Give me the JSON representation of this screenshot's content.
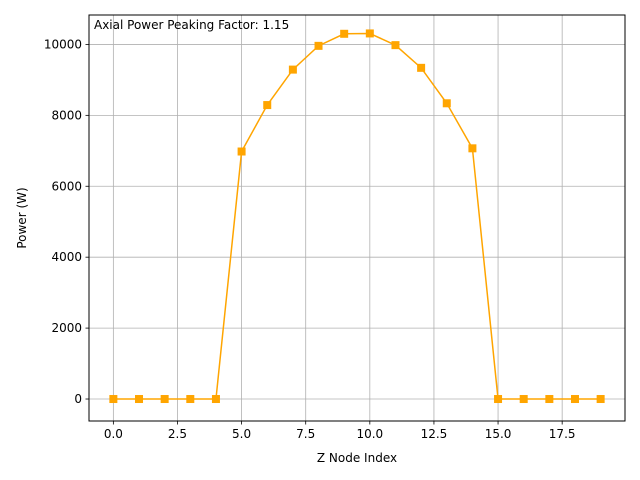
{
  "chart_data": {
    "type": "line",
    "title": "",
    "annotation": "Axial Power Peaking Factor: 1.15",
    "xlabel": "Z Node Index",
    "ylabel": "Power (W)",
    "xlim": [
      -0.95,
      19.95
    ],
    "ylim": [
      -620,
      10830
    ],
    "x_ticks": [
      0,
      2.5,
      5,
      7.5,
      10,
      12.5,
      15,
      17.5
    ],
    "x_tick_labels": [
      "0.0",
      "2.5",
      "5.0",
      "7.5",
      "10.0",
      "12.5",
      "15.0",
      "17.5"
    ],
    "y_ticks": [
      0,
      2000,
      4000,
      6000,
      8000,
      10000
    ],
    "y_tick_labels": [
      "0",
      "2000",
      "4000",
      "6000",
      "8000",
      "10000"
    ],
    "grid": true,
    "series": [
      {
        "color": "#ffa500",
        "marker": "square",
        "x": [
          0,
          1,
          2,
          3,
          4,
          5,
          6,
          7,
          8,
          9,
          10,
          11,
          12,
          13,
          14,
          15,
          16,
          17,
          18,
          19
        ],
        "y": [
          0,
          0,
          0,
          0,
          0,
          6980,
          8290,
          9290,
          9960,
          10300,
          10310,
          9980,
          9340,
          8340,
          7070,
          0,
          0,
          0,
          0,
          0
        ]
      }
    ]
  }
}
